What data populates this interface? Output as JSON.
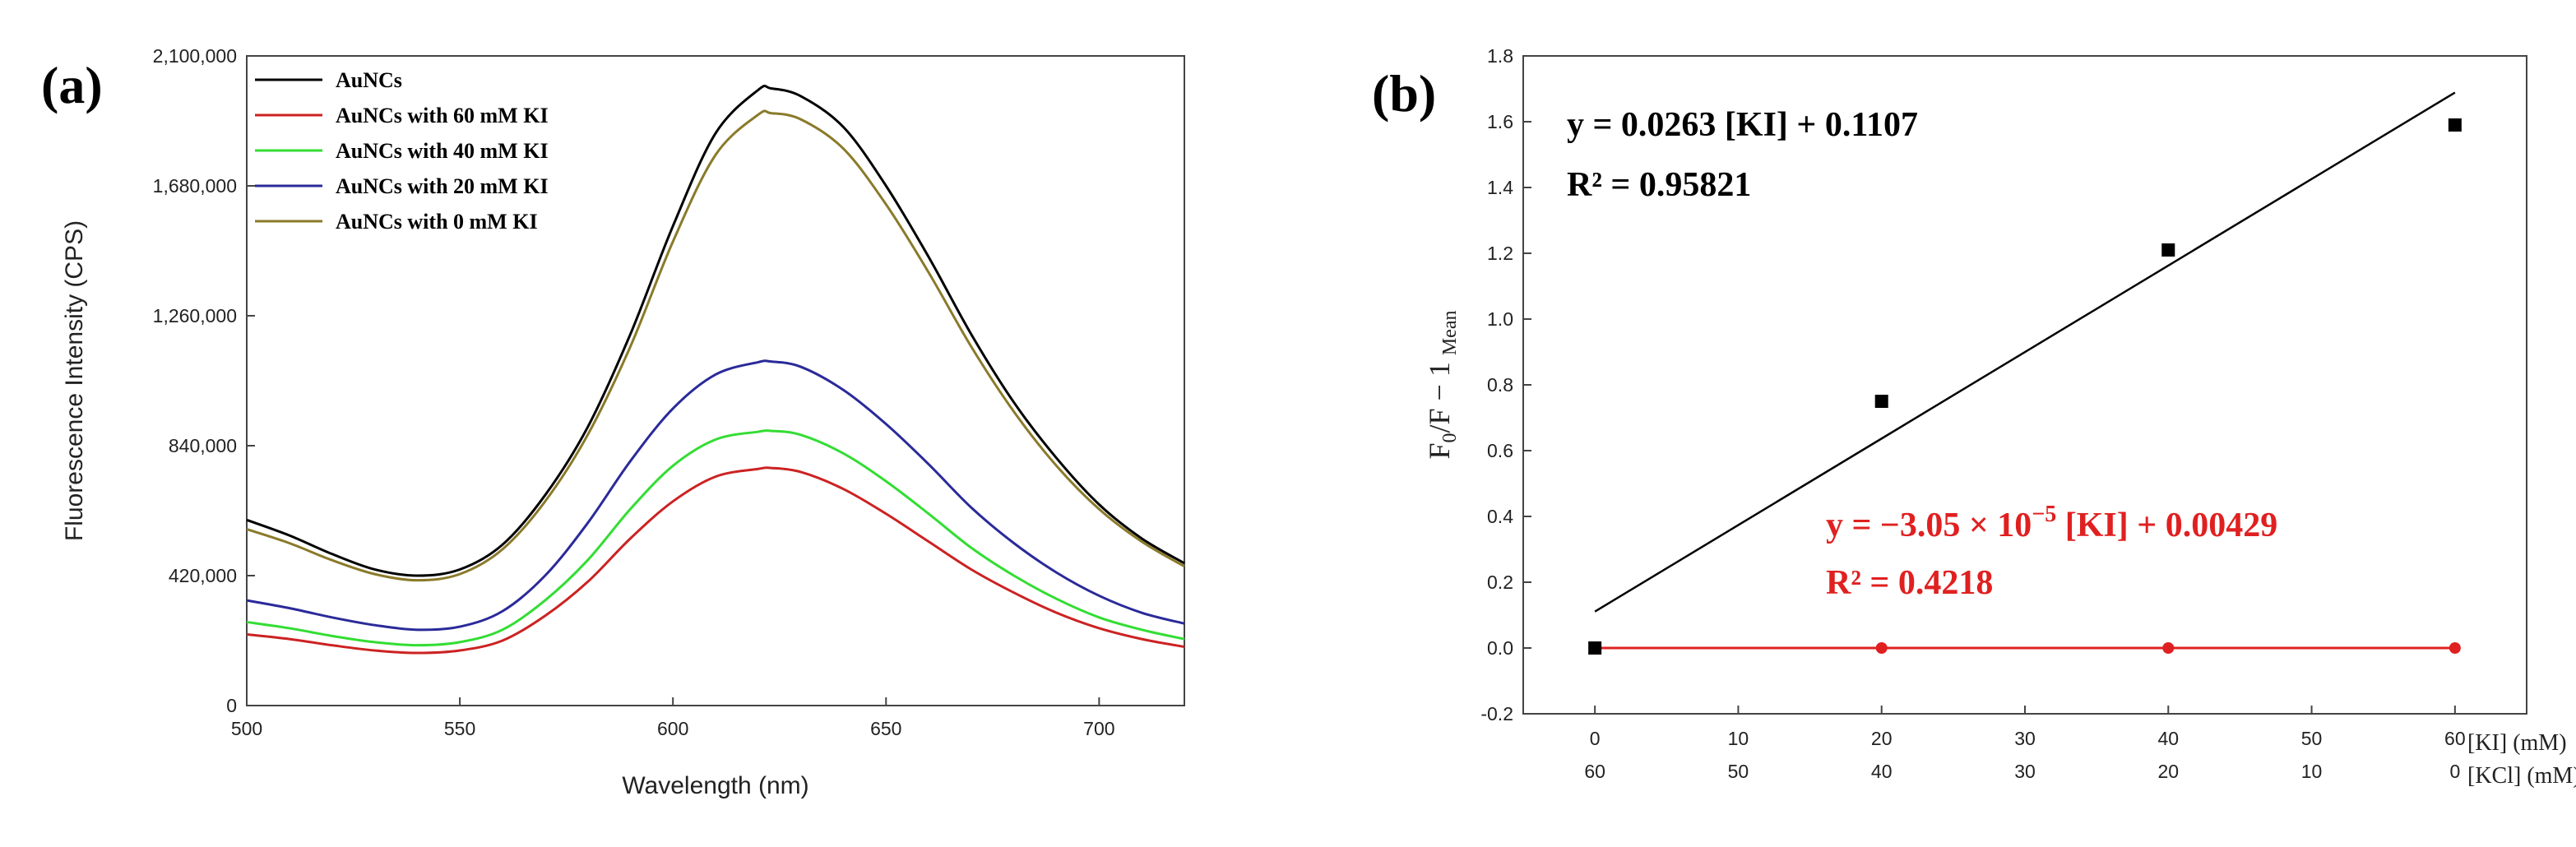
{
  "figure": {
    "panel_a_label": "(a)",
    "panel_b_label": "(b)"
  },
  "chart_data": [
    {
      "type": "line",
      "panel": "(a)",
      "xlabel": "Wavelength (nm)",
      "ylabel": "Fluorescence Intensity (CPS)",
      "xlim": [
        500,
        720
      ],
      "ylim": [
        0,
        2100000
      ],
      "x_ticks": [
        500,
        550,
        600,
        650,
        700
      ],
      "y_ticks": [
        0,
        420000,
        840000,
        1260000,
        1680000,
        2100000
      ],
      "y_tick_labels": [
        "0",
        "420,000",
        "840,000",
        "1,260,000",
        "1,680,000",
        "2,100,000"
      ],
      "x": [
        500,
        510,
        520,
        530,
        540,
        550,
        560,
        570,
        580,
        590,
        600,
        610,
        620,
        623,
        630,
        640,
        650,
        660,
        670,
        680,
        690,
        700,
        710,
        720
      ],
      "series": [
        {
          "name": "AuNCs",
          "color": "#000000",
          "values": [
            600000,
            550000,
            490000,
            440000,
            420000,
            440000,
            520000,
            680000,
            900000,
            1200000,
            1550000,
            1850000,
            1990000,
            1995000,
            1970000,
            1870000,
            1680000,
            1450000,
            1200000,
            980000,
            800000,
            650000,
            540000,
            460000
          ]
        },
        {
          "name": "AuNCs with 60 mM KI",
          "color": "#cc2222",
          "values": [
            230000,
            215000,
            195000,
            178000,
            170000,
            178000,
            210000,
            290000,
            400000,
            540000,
            660000,
            740000,
            765000,
            768000,
            755000,
            700000,
            620000,
            530000,
            440000,
            365000,
            300000,
            250000,
            215000,
            190000
          ]
        },
        {
          "name": "AuNCs with 40 mM KI",
          "color": "#33dd33",
          "values": [
            270000,
            250000,
            225000,
            205000,
            195000,
            205000,
            245000,
            340000,
            470000,
            635000,
            775000,
            860000,
            885000,
            888000,
            875000,
            815000,
            725000,
            620000,
            510000,
            420000,
            345000,
            285000,
            245000,
            215000
          ]
        },
        {
          "name": "AuNCs with 20 mM KI",
          "color": "#2a2a9a",
          "values": [
            340000,
            315000,
            285000,
            260000,
            245000,
            255000,
            305000,
            420000,
            590000,
            790000,
            960000,
            1070000,
            1110000,
            1112000,
            1095000,
            1020000,
            910000,
            780000,
            640000,
            525000,
            430000,
            355000,
            300000,
            265000
          ]
        },
        {
          "name": "AuNCs with 0 mM KI",
          "color": "#8a7a2a",
          "values": [
            570000,
            525000,
            470000,
            425000,
            405000,
            425000,
            505000,
            660000,
            875000,
            1160000,
            1500000,
            1780000,
            1910000,
            1915000,
            1895000,
            1800000,
            1620000,
            1400000,
            1160000,
            950000,
            775000,
            635000,
            530000,
            450000
          ]
        }
      ]
    },
    {
      "type": "scatter",
      "panel": "(b)",
      "ylabel_main": "F",
      "ylabel_sub0": "0",
      "ylabel_mid": "/F − 1",
      "ylabel_sub1": "Mean",
      "xlim": [
        -5,
        65
      ],
      "ylim": [
        -0.2,
        1.8
      ],
      "x_ticks": [
        0,
        10,
        20,
        30,
        40,
        50,
        60
      ],
      "x_tick_labels": [
        "0",
        "10",
        "20",
        "30",
        "40",
        "50",
        "60"
      ],
      "x2_tick_labels": [
        "60",
        "50",
        "40",
        "30",
        "20",
        "10",
        "0"
      ],
      "y_ticks": [
        -0.2,
        0.0,
        0.2,
        0.4,
        0.6,
        0.8,
        1.0,
        1.2,
        1.4,
        1.6,
        1.8
      ],
      "y_tick_labels": [
        "-0.2",
        "0.0",
        "0.2",
        "0.4",
        "0.6",
        "0.8",
        "1.0",
        "1.2",
        "1.4",
        "1.6",
        "1.8"
      ],
      "xlabel_top": "[KI] (mM)",
      "xlabel_bottom": "[KCl] (mM)",
      "series": [
        {
          "name": "KI",
          "color": "#000000",
          "marker": "square",
          "x": [
            0,
            20,
            40,
            60
          ],
          "y": [
            0.0,
            0.75,
            1.21,
            1.59
          ],
          "fit": {
            "slope": 0.0263,
            "intercept": 0.1107
          }
        },
        {
          "name": "KCl",
          "color": "#e02020",
          "marker": "circle",
          "x": [
            0,
            20,
            40,
            60
          ],
          "y": [
            0.0,
            0.0,
            0.0,
            0.0
          ]
        }
      ],
      "annotations": {
        "ki_eq": "y = 0.0263 [KI] + 0.1107",
        "ki_r2": "R² = 0.95821",
        "kcl_eq_prefix": "y = −3.05 × 10",
        "kcl_eq_exp": "−5",
        "kcl_eq_suffix": " [KI] + 0.00429",
        "kcl_r2": "R² = 0.4218"
      }
    }
  ]
}
